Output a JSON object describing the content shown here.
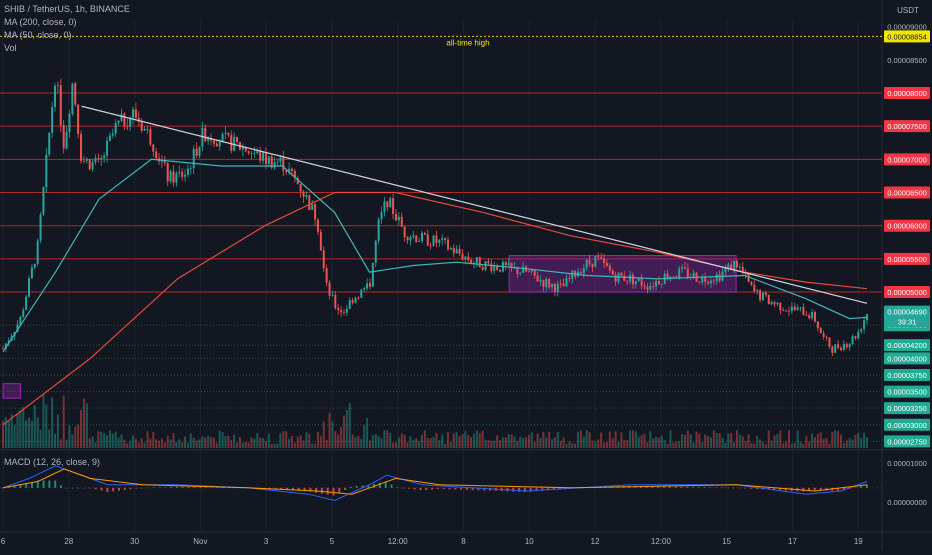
{
  "header": {
    "symbol_title": "SHIB / TetherUS, 1h, BINANCE",
    "indicator_ma200": "MA (200, close, 0)",
    "indicator_ma50": "MA (50, close, 0)",
    "indicator_vol": "Vol",
    "macd_title": "MACD (12, 26, close, 9)",
    "currency": "USDT",
    "countdown": "39:31",
    "ath_annotation": "all-time high"
  },
  "colors": {
    "background": "#131722",
    "grid": "#1e222d",
    "up": "#26a69a",
    "down": "#ef5350",
    "ma200": "#e8483d",
    "ma50": "#3fb6b8",
    "trendline": "#d1d4dc",
    "box": "#9c27b0",
    "ath": "#f2e600",
    "macd": "#2962ff",
    "signal": "#ff9800"
  },
  "chart_data": [
    {
      "type": "line",
      "title": "SHIB / TetherUS, 1h, BINANCE",
      "subtype": "candlestick",
      "y_unit": "USDT",
      "ylim": [
        2.65e-05,
        9.1e-05
      ],
      "x_ticks": [
        "6",
        "28",
        "30",
        "Nov",
        "3",
        "5",
        "12:00",
        "8",
        "10",
        "12",
        "12:00",
        "15",
        "17",
        "19"
      ],
      "price_levels": [
        {
          "value": "0.00008854",
          "style": "yellow"
        },
        {
          "value": "0.00008000",
          "style": "red"
        },
        {
          "value": "0.00007500",
          "style": "red"
        },
        {
          "value": "0.00007000",
          "style": "red"
        },
        {
          "value": "0.00006500",
          "style": "red"
        },
        {
          "value": "0.00006000",
          "style": "red"
        },
        {
          "value": "0.00005500",
          "style": "red"
        },
        {
          "value": "0.00005000",
          "style": "red"
        },
        {
          "value": "0.00004500",
          "style": "green"
        },
        {
          "value": "0.00004200",
          "style": "green"
        },
        {
          "value": "0.00004000",
          "style": "green"
        },
        {
          "value": "0.00003750",
          "style": "green"
        },
        {
          "value": "0.00003500",
          "style": "green"
        },
        {
          "value": "0.00003250",
          "style": "green"
        },
        {
          "value": "0.00003000",
          "style": "green"
        },
        {
          "value": "0.00002750",
          "style": "green"
        }
      ],
      "axis_labels": [
        "0.00009000",
        "0.00008500"
      ],
      "current_price": "0.00004690",
      "price_path": [
        {
          "t": 0,
          "v": 4.15e-05
        },
        {
          "t": 2,
          "v": 4.6e-05
        },
        {
          "t": 4,
          "v": 5.7e-05
        },
        {
          "t": 5,
          "v": 7e-05
        },
        {
          "t": 6,
          "v": 8.3e-05
        },
        {
          "t": 7,
          "v": 7.2e-05
        },
        {
          "t": 8,
          "v": 8.2e-05
        },
        {
          "t": 9,
          "v": 7e-05
        },
        {
          "t": 11,
          "v": 6.9e-05
        },
        {
          "t": 13,
          "v": 7.5e-05
        },
        {
          "t": 15,
          "v": 7.7e-05
        },
        {
          "t": 17,
          "v": 7.3e-05
        },
        {
          "t": 19,
          "v": 6.7e-05
        },
        {
          "t": 21,
          "v": 6.8e-05
        },
        {
          "t": 23,
          "v": 7.4e-05
        },
        {
          "t": 25,
          "v": 7.3e-05
        },
        {
          "t": 28,
          "v": 7.15e-05
        },
        {
          "t": 30,
          "v": 7e-05
        },
        {
          "t": 32,
          "v": 6.95e-05
        },
        {
          "t": 34,
          "v": 6.6e-05
        },
        {
          "t": 36,
          "v": 6.1e-05
        },
        {
          "t": 37,
          "v": 5.1e-05
        },
        {
          "t": 38,
          "v": 4.8e-05
        },
        {
          "t": 39,
          "v": 4.7e-05
        },
        {
          "t": 40,
          "v": 4.9e-05
        },
        {
          "t": 42,
          "v": 5.1e-05
        },
        {
          "t": 43,
          "v": 6e-05
        },
        {
          "t": 44,
          "v": 6.4e-05
        },
        {
          "t": 46,
          "v": 5.9e-05
        },
        {
          "t": 48,
          "v": 5.8e-05
        },
        {
          "t": 50,
          "v": 5.75e-05
        },
        {
          "t": 52,
          "v": 5.6e-05
        },
        {
          "t": 54,
          "v": 5.45e-05
        },
        {
          "t": 56,
          "v": 5.4e-05
        },
        {
          "t": 58,
          "v": 5.35e-05
        },
        {
          "t": 60,
          "v": 5.3e-05
        },
        {
          "t": 62,
          "v": 5.15e-05
        },
        {
          "t": 64,
          "v": 5.05e-05
        },
        {
          "t": 66,
          "v": 5.35e-05
        },
        {
          "t": 68,
          "v": 5.5e-05
        },
        {
          "t": 70,
          "v": 5.25e-05
        },
        {
          "t": 72,
          "v": 5.2e-05
        },
        {
          "t": 74,
          "v": 5.1e-05
        },
        {
          "t": 76,
          "v": 5.25e-05
        },
        {
          "t": 78,
          "v": 5.3e-05
        },
        {
          "t": 80,
          "v": 5.2e-05
        },
        {
          "t": 82,
          "v": 5.25e-05
        },
        {
          "t": 84,
          "v": 5.45e-05
        },
        {
          "t": 86,
          "v": 5e-05
        },
        {
          "t": 88,
          "v": 4.85e-05
        },
        {
          "t": 90,
          "v": 4.75e-05
        },
        {
          "t": 92,
          "v": 4.7e-05
        },
        {
          "t": 93,
          "v": 4.6e-05
        },
        {
          "t": 94,
          "v": 4.3e-05
        },
        {
          "t": 95,
          "v": 4.15e-05
        },
        {
          "t": 96,
          "v": 4.2e-05
        },
        {
          "t": 97,
          "v": 4.25e-05
        },
        {
          "t": 98,
          "v": 4.4e-05
        },
        {
          "t": 99,
          "v": 4.69e-05
        }
      ],
      "ma200_path": [
        {
          "t": 0,
          "v": 3e-05
        },
        {
          "t": 10,
          "v": 4e-05
        },
        {
          "t": 20,
          "v": 5.2e-05
        },
        {
          "t": 30,
          "v": 6e-05
        },
        {
          "t": 38,
          "v": 6.5e-05
        },
        {
          "t": 45,
          "v": 6.5e-05
        },
        {
          "t": 55,
          "v": 6.2e-05
        },
        {
          "t": 65,
          "v": 5.85e-05
        },
        {
          "t": 75,
          "v": 5.6e-05
        },
        {
          "t": 85,
          "v": 5.3e-05
        },
        {
          "t": 92,
          "v": 5.15e-05
        },
        {
          "t": 99,
          "v": 5.05e-05
        }
      ],
      "ma50_path": [
        {
          "t": 0,
          "v": 4.1e-05
        },
        {
          "t": 6,
          "v": 5.3e-05
        },
        {
          "t": 11,
          "v": 6.4e-05
        },
        {
          "t": 17,
          "v": 7e-05
        },
        {
          "t": 25,
          "v": 6.9e-05
        },
        {
          "t": 32,
          "v": 6.9e-05
        },
        {
          "t": 38,
          "v": 6.2e-05
        },
        {
          "t": 42,
          "v": 5.3e-05
        },
        {
          "t": 47,
          "v": 5.4e-05
        },
        {
          "t": 52,
          "v": 5.45e-05
        },
        {
          "t": 60,
          "v": 5.35e-05
        },
        {
          "t": 67,
          "v": 5.25e-05
        },
        {
          "t": 75,
          "v": 5.2e-05
        },
        {
          "t": 85,
          "v": 5.25e-05
        },
        {
          "t": 92,
          "v": 4.9e-05
        },
        {
          "t": 97,
          "v": 4.6e-05
        },
        {
          "t": 99,
          "v": 4.62e-05
        }
      ],
      "trendline": [
        {
          "t": 9,
          "v": 7.8e-05
        },
        {
          "t": 99,
          "v": 4.83e-05
        }
      ],
      "consolidation_box": {
        "t0": 58,
        "t1": 84,
        "v0": 5e-05,
        "v1": 5.55e-05
      },
      "left_box": {
        "t0": 0,
        "t1": 2,
        "v0": 3.4e-05,
        "v1": 3.62e-05
      }
    },
    {
      "type": "line",
      "title": "MACD (12, 26, close, 9)",
      "axis_labels": [
        "0.00001000",
        "0.00000000"
      ],
      "ylim": [
        -1.4e-06,
        1.2e-06
      ],
      "series": [
        {
          "name": "MACD",
          "values": [
            {
              "t": 0,
              "v": 0.0
            },
            {
              "t": 3,
              "v": 3e-07
            },
            {
              "t": 6,
              "v": 7e-07
            },
            {
              "t": 8,
              "v": 5e-07
            },
            {
              "t": 12,
              "v": 1e-07
            },
            {
              "t": 20,
              "v": 1e-07
            },
            {
              "t": 28,
              "v": 0.0
            },
            {
              "t": 35,
              "v": -2e-07
            },
            {
              "t": 38,
              "v": -4e-07
            },
            {
              "t": 42,
              "v": 1e-07
            },
            {
              "t": 44,
              "v": 4e-07
            },
            {
              "t": 48,
              "v": 1e-07
            },
            {
              "t": 60,
              "v": -1e-07
            },
            {
              "t": 72,
              "v": 1e-07
            },
            {
              "t": 84,
              "v": 1e-07
            },
            {
              "t": 92,
              "v": -2e-07
            },
            {
              "t": 96,
              "v": -1e-07
            },
            {
              "t": 99,
              "v": 2e-07
            }
          ]
        },
        {
          "name": "Signal",
          "values": [
            {
              "t": 0,
              "v": 0.0
            },
            {
              "t": 4,
              "v": 2e-07
            },
            {
              "t": 7,
              "v": 6e-07
            },
            {
              "t": 10,
              "v": 3e-07
            },
            {
              "t": 16,
              "v": 1e-07
            },
            {
              "t": 28,
              "v": 0.0
            },
            {
              "t": 36,
              "v": -1e-07
            },
            {
              "t": 40,
              "v": -2e-07
            },
            {
              "t": 45,
              "v": 3e-07
            },
            {
              "t": 50,
              "v": 1e-07
            },
            {
              "t": 65,
              "v": 0.0
            },
            {
              "t": 84,
              "v": 1e-07
            },
            {
              "t": 93,
              "v": -1e-07
            },
            {
              "t": 99,
              "v": 1e-07
            }
          ]
        }
      ]
    }
  ]
}
